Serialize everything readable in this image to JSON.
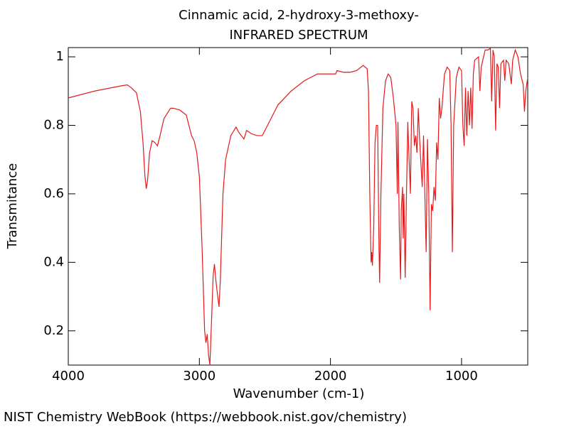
{
  "chart_data": {
    "type": "line",
    "title": "Cinnamic acid, 2-hydroxy-3-methoxy-",
    "subtitle": "INFRARED SPECTRUM",
    "x_label": "Wavenumber (cm-1)",
    "y_label": "Transmitance",
    "footer": "NIST Chemistry WebBook (https://webbook.nist.gov/chemistry)",
    "xlim": [
      4000,
      495
    ],
    "ylim": [
      0.1,
      1.027
    ],
    "xticks": [
      4000,
      3000,
      2000,
      1000
    ],
    "yticks": [
      0.2,
      0.4,
      0.6,
      0.8,
      1
    ],
    "color": "#e31a1c",
    "x": [
      4000,
      3800,
      3600,
      3550,
      3520,
      3480,
      3450,
      3430,
      3415,
      3405,
      3395,
      3380,
      3360,
      3340,
      3320,
      3300,
      3270,
      3220,
      3200,
      3150,
      3100,
      3060,
      3040,
      3020,
      3000,
      2980,
      2960,
      2950,
      2940,
      2930,
      2920,
      2910,
      2895,
      2885,
      2875,
      2860,
      2850,
      2840,
      2820,
      2800,
      2760,
      2720,
      2700,
      2660,
      2640,
      2600,
      2560,
      2520,
      2480,
      2400,
      2300,
      2200,
      2100,
      2000,
      1960,
      1950,
      1900,
      1850,
      1800,
      1750,
      1720,
      1710,
      1700,
      1690,
      1685,
      1680,
      1670,
      1660,
      1650,
      1640,
      1630,
      1625,
      1615,
      1600,
      1580,
      1560,
      1540,
      1520,
      1500,
      1490,
      1485,
      1475,
      1465,
      1460,
      1450,
      1445,
      1440,
      1430,
      1420,
      1410,
      1400,
      1390,
      1380,
      1370,
      1360,
      1350,
      1340,
      1330,
      1320,
      1300,
      1290,
      1280,
      1270,
      1260,
      1250,
      1240,
      1230,
      1220,
      1210,
      1200,
      1190,
      1180,
      1170,
      1160,
      1150,
      1130,
      1110,
      1090,
      1080,
      1070,
      1060,
      1040,
      1020,
      1000,
      990,
      980,
      970,
      960,
      950,
      940,
      930,
      920,
      910,
      900,
      870,
      860,
      850,
      820,
      800,
      780,
      770,
      760,
      750,
      740,
      730,
      720,
      710,
      700,
      680,
      670,
      660,
      640,
      620,
      610,
      590,
      570,
      550,
      530,
      520,
      510,
      495
    ],
    "values": [
      0.88,
      0.9,
      0.915,
      0.918,
      0.91,
      0.895,
      0.84,
      0.75,
      0.65,
      0.615,
      0.64,
      0.72,
      0.755,
      0.75,
      0.74,
      0.77,
      0.82,
      0.85,
      0.85,
      0.845,
      0.83,
      0.77,
      0.755,
      0.72,
      0.65,
      0.45,
      0.2,
      0.165,
      0.19,
      0.13,
      0.1,
      0.2,
      0.36,
      0.395,
      0.35,
      0.3,
      0.27,
      0.35,
      0.6,
      0.7,
      0.77,
      0.795,
      0.78,
      0.76,
      0.785,
      0.775,
      0.77,
      0.77,
      0.8,
      0.86,
      0.9,
      0.93,
      0.95,
      0.95,
      0.95,
      0.96,
      0.955,
      0.955,
      0.96,
      0.975,
      0.965,
      0.9,
      0.6,
      0.4,
      0.43,
      0.39,
      0.5,
      0.75,
      0.8,
      0.8,
      0.45,
      0.34,
      0.6,
      0.85,
      0.93,
      0.95,
      0.94,
      0.88,
      0.8,
      0.6,
      0.81,
      0.5,
      0.35,
      0.55,
      0.62,
      0.47,
      0.6,
      0.355,
      0.6,
      0.81,
      0.7,
      0.6,
      0.87,
      0.85,
      0.74,
      0.77,
      0.72,
      0.85,
      0.76,
      0.62,
      0.77,
      0.6,
      0.43,
      0.76,
      0.6,
      0.26,
      0.57,
      0.55,
      0.62,
      0.58,
      0.75,
      0.7,
      0.88,
      0.82,
      0.85,
      0.95,
      0.97,
      0.96,
      0.8,
      0.43,
      0.8,
      0.94,
      0.97,
      0.96,
      0.8,
      0.74,
      0.91,
      0.77,
      0.9,
      0.8,
      0.91,
      0.79,
      0.95,
      0.99,
      1.0,
      0.9,
      0.97,
      1.02,
      1.02,
      1.025,
      0.87,
      1.02,
      1.0,
      0.785,
      0.98,
      0.97,
      0.85,
      0.98,
      0.99,
      0.93,
      0.99,
      0.98,
      0.92,
      0.99,
      1.02,
      1.0,
      0.95,
      0.92,
      0.84,
      0.9,
      0.94
    ]
  }
}
